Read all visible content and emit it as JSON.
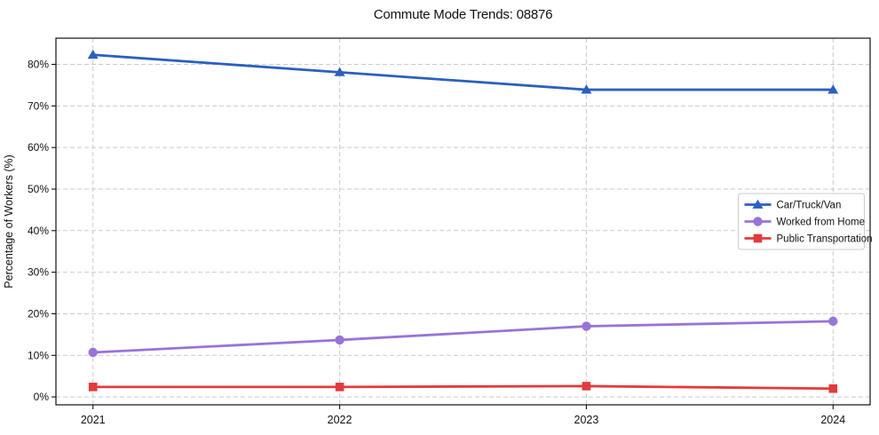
{
  "title": "Commute Mode Trends: 08876",
  "chart_data": {
    "type": "line",
    "title": "Commute Mode Trends: 08876",
    "xlabel": "",
    "ylabel": "Percentage of Workers (%)",
    "x": [
      2021,
      2022,
      2023,
      2024
    ],
    "x_tick_labels": [
      "2021",
      "2022",
      "2023",
      "2024"
    ],
    "y_ticks": [
      0,
      10,
      20,
      30,
      40,
      50,
      60,
      70,
      80
    ],
    "y_tick_labels": [
      "0%",
      "10%",
      "20%",
      "30%",
      "40%",
      "50%",
      "60%",
      "70%",
      "80%"
    ],
    "ylim": [
      -1.9,
      86.3
    ],
    "grid": true,
    "grid_style": "dashed",
    "legend_position": "right",
    "series": [
      {
        "name": "Car/Truck/Van",
        "values": [
          82.3,
          78.1,
          73.9,
          73.9
        ],
        "color": "#2b5fc1",
        "marker": "triangle"
      },
      {
        "name": "Worked from Home",
        "values": [
          10.7,
          13.7,
          17.0,
          18.2
        ],
        "color": "#9874d8",
        "marker": "circle"
      },
      {
        "name": "Public Transportation",
        "values": [
          2.4,
          2.4,
          2.6,
          2.0
        ],
        "color": "#e23b3c",
        "marker": "square"
      }
    ]
  }
}
